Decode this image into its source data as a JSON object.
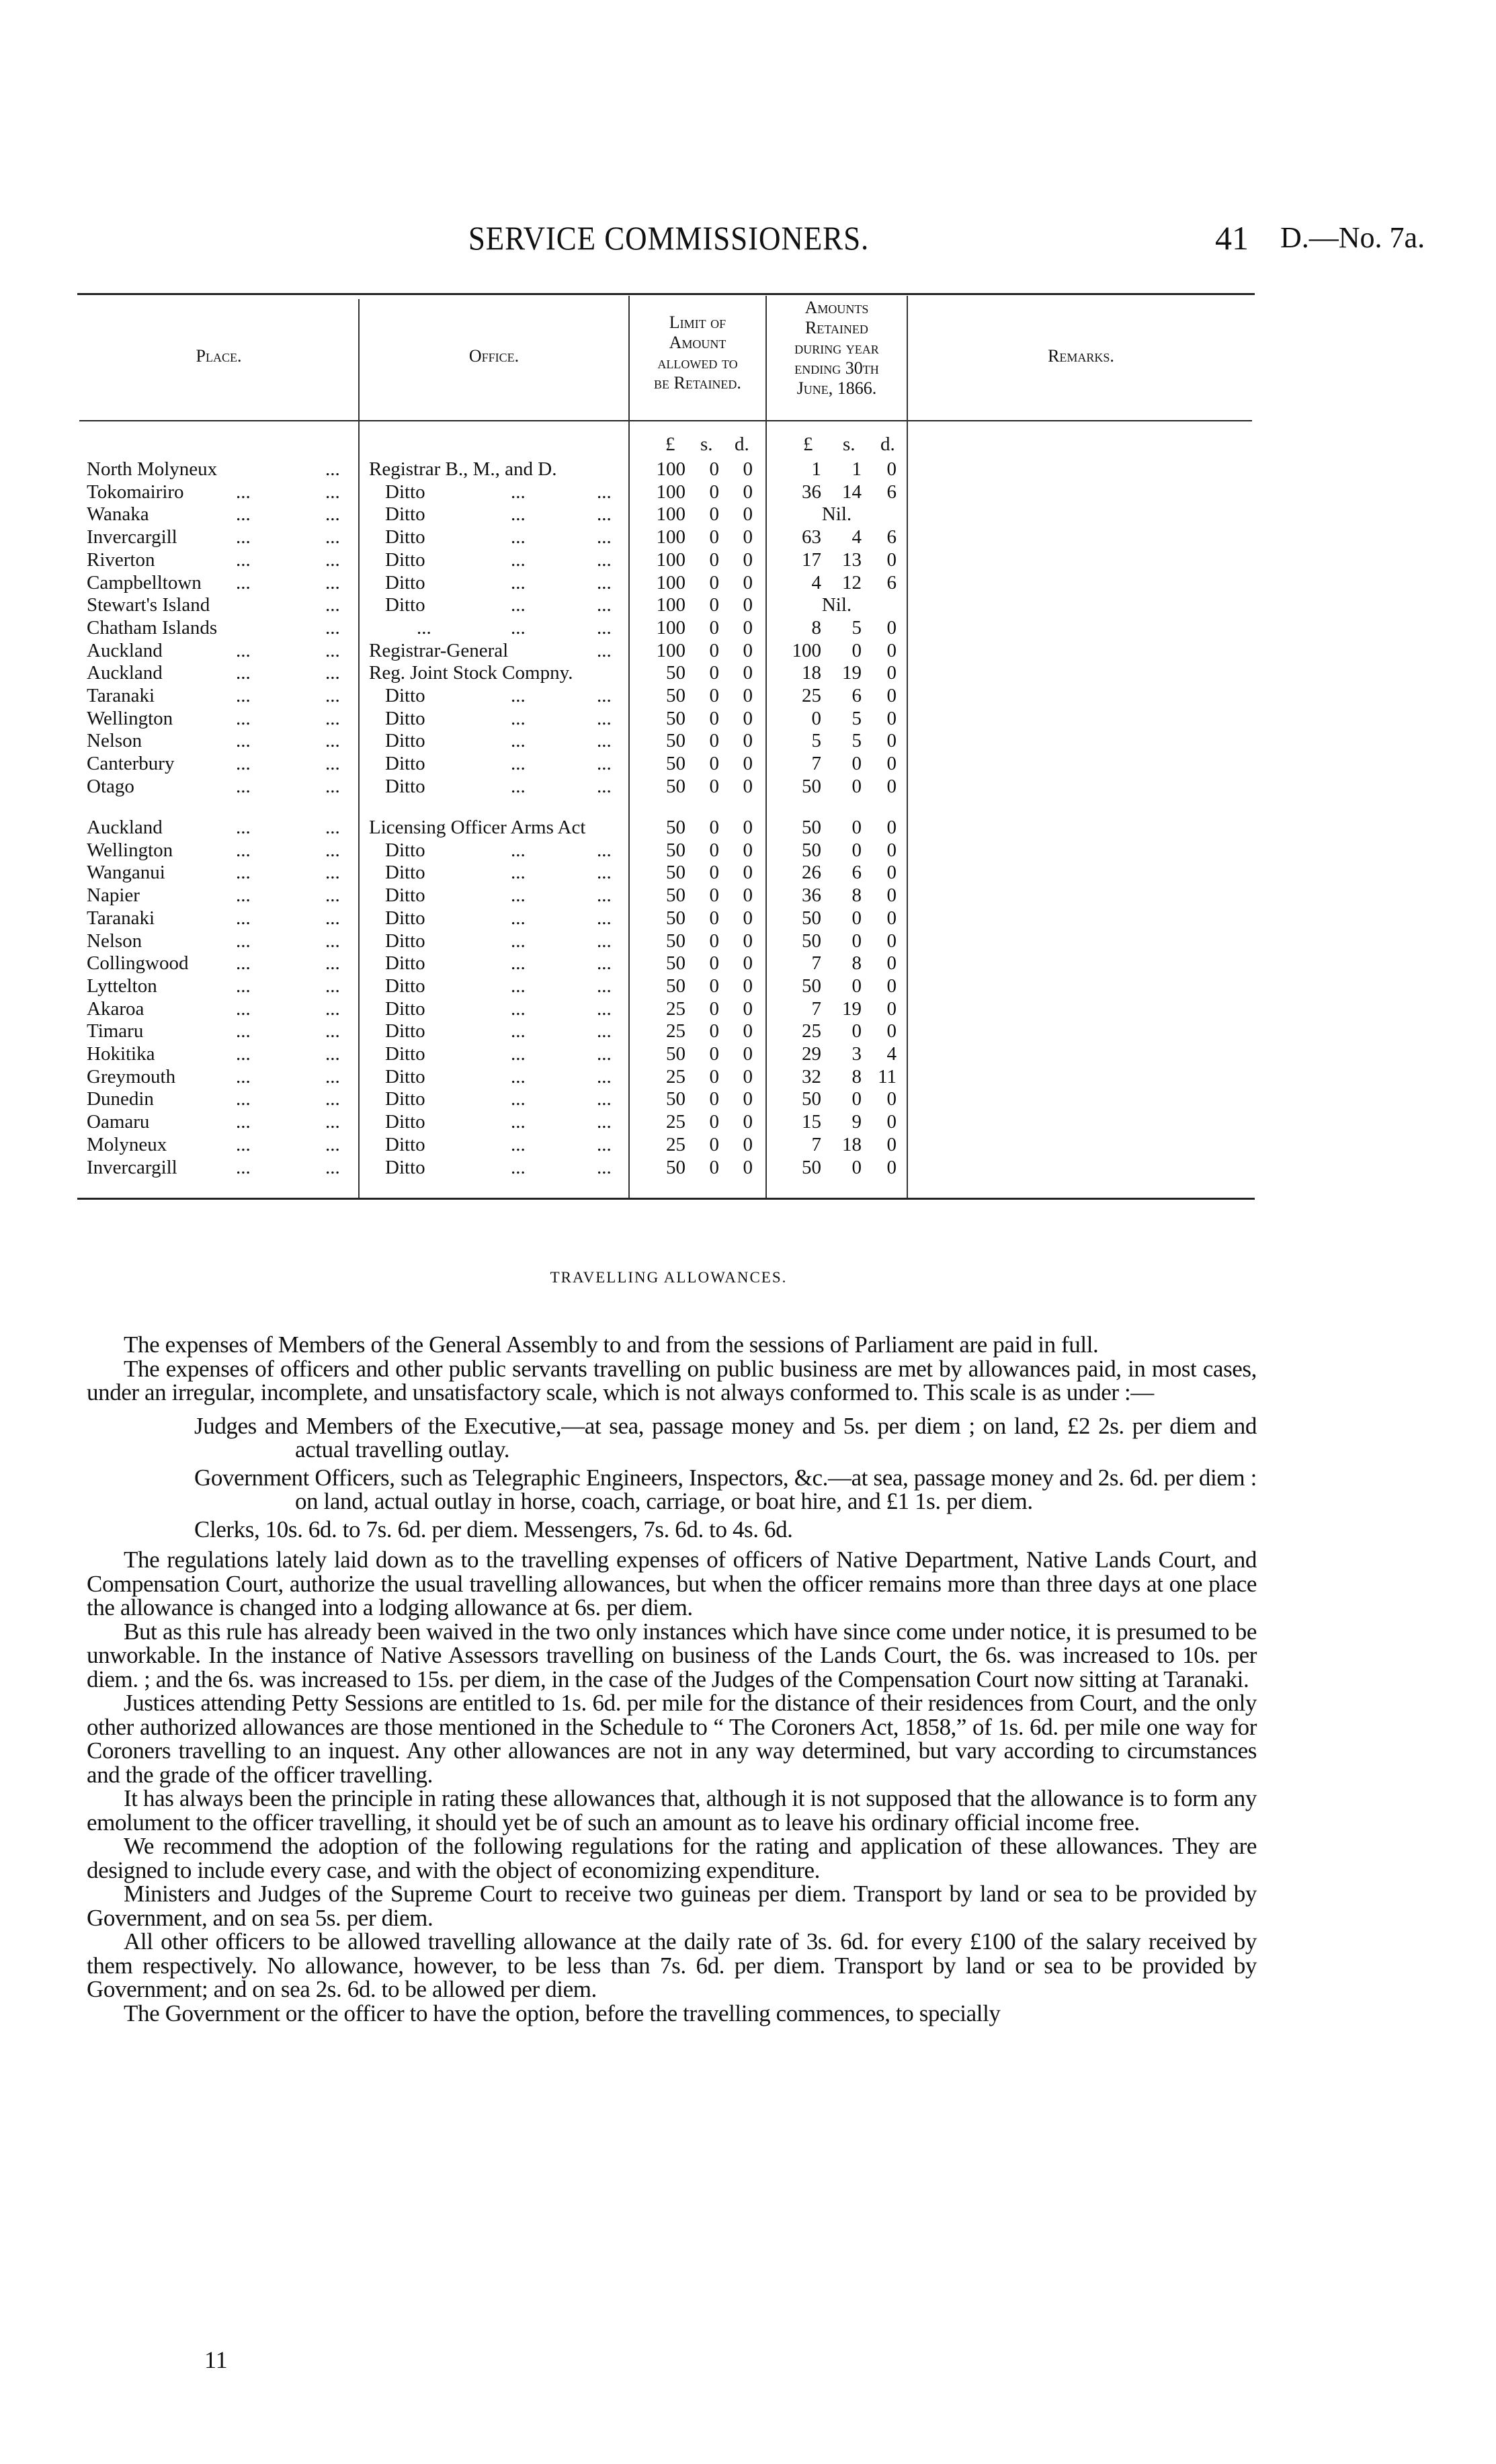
{
  "header": {
    "title": "SERVICE COMMISSIONERS.",
    "page_number": "41",
    "document_ref": "D.—No. 7a."
  },
  "table": {
    "headers": {
      "place": "Place.",
      "office": "Office.",
      "limit": [
        "Limit of",
        "Amount",
        "allowed to",
        "be Retained."
      ],
      "retained": [
        "Amounts",
        "Retained",
        "during year",
        "ending 30th",
        "June, 1866."
      ],
      "remarks": "Remarks."
    },
    "units": {
      "pounds": "£",
      "shillings": "s.",
      "pence": "d."
    },
    "leader": "...",
    "groups": [
      [
        {
          "place": "North Molyneux",
          "place_leaders": 1,
          "office": "Registrar B., M., and D.",
          "office_style": "full",
          "limit": [
            "100",
            "0",
            "0"
          ],
          "retained": [
            "1",
            "1",
            "0"
          ]
        },
        {
          "place": "Tokomairiro",
          "place_leaders": 2,
          "office": "Ditto",
          "office_style": "ditto",
          "limit": [
            "100",
            "0",
            "0"
          ],
          "retained": [
            "36",
            "14",
            "6"
          ]
        },
        {
          "place": "Wanaka",
          "place_leaders": 2,
          "office": "Ditto",
          "office_style": "ditto",
          "limit": [
            "100",
            "0",
            "0"
          ],
          "retained": "Nil."
        },
        {
          "place": "Invercargill",
          "place_leaders": 2,
          "office": "Ditto",
          "office_style": "ditto",
          "limit": [
            "100",
            "0",
            "0"
          ],
          "retained": [
            "63",
            "4",
            "6"
          ]
        },
        {
          "place": "Riverton",
          "place_leaders": 2,
          "office": "Ditto",
          "office_style": "ditto",
          "limit": [
            "100",
            "0",
            "0"
          ],
          "retained": [
            "17",
            "13",
            "0"
          ]
        },
        {
          "place": "Campbelltown",
          "place_leaders": 2,
          "office": "Ditto",
          "office_style": "ditto",
          "limit": [
            "100",
            "0",
            "0"
          ],
          "retained": [
            "4",
            "12",
            "6"
          ]
        },
        {
          "place": "Stewart's Island",
          "place_leaders": 1,
          "office": "Ditto",
          "office_style": "ditto",
          "limit": [
            "100",
            "0",
            "0"
          ],
          "retained": "Nil."
        },
        {
          "place": "Chatham Islands",
          "place_leaders": 1,
          "office": "",
          "office_style": "blank",
          "limit": [
            "100",
            "0",
            "0"
          ],
          "retained": [
            "8",
            "5",
            "0"
          ]
        },
        {
          "place": "Auckland",
          "place_leaders": 2,
          "office": "Registrar-General",
          "office_style": "full_leader",
          "limit": [
            "100",
            "0",
            "0"
          ],
          "retained": [
            "100",
            "0",
            "0"
          ]
        },
        {
          "place": "Auckland",
          "place_leaders": 2,
          "office": "Reg. Joint Stock Compny.",
          "office_style": "full",
          "limit": [
            "50",
            "0",
            "0"
          ],
          "retained": [
            "18",
            "19",
            "0"
          ]
        },
        {
          "place": "Taranaki",
          "place_leaders": 2,
          "office": "Ditto",
          "office_style": "ditto",
          "limit": [
            "50",
            "0",
            "0"
          ],
          "retained": [
            "25",
            "6",
            "0"
          ]
        },
        {
          "place": "Wellington",
          "place_leaders": 2,
          "office": "Ditto",
          "office_style": "ditto",
          "limit": [
            "50",
            "0",
            "0"
          ],
          "retained": [
            "0",
            "5",
            "0"
          ]
        },
        {
          "place": "Nelson",
          "place_leaders": 2,
          "office": "Ditto",
          "office_style": "ditto",
          "limit": [
            "50",
            "0",
            "0"
          ],
          "retained": [
            "5",
            "5",
            "0"
          ]
        },
        {
          "place": "Canterbury",
          "place_leaders": 2,
          "office": "Ditto",
          "office_style": "ditto",
          "limit": [
            "50",
            "0",
            "0"
          ],
          "retained": [
            "7",
            "0",
            "0"
          ]
        },
        {
          "place": "Otago",
          "place_leaders": 2,
          "office": "Ditto",
          "office_style": "ditto",
          "limit": [
            "50",
            "0",
            "0"
          ],
          "retained": [
            "50",
            "0",
            "0"
          ]
        }
      ],
      [
        {
          "place": "Auckland",
          "place_leaders": 2,
          "office": "Licensing Officer Arms Act",
          "office_style": "full",
          "limit": [
            "50",
            "0",
            "0"
          ],
          "retained": [
            "50",
            "0",
            "0"
          ]
        },
        {
          "place": "Wellington",
          "place_leaders": 2,
          "office": "Ditto",
          "office_style": "ditto",
          "limit": [
            "50",
            "0",
            "0"
          ],
          "retained": [
            "50",
            "0",
            "0"
          ]
        },
        {
          "place": "Wanganui",
          "place_leaders": 2,
          "office": "Ditto",
          "office_style": "ditto",
          "limit": [
            "50",
            "0",
            "0"
          ],
          "retained": [
            "26",
            "6",
            "0"
          ]
        },
        {
          "place": "Napier",
          "place_leaders": 2,
          "office": "Ditto",
          "office_style": "ditto",
          "limit": [
            "50",
            "0",
            "0"
          ],
          "retained": [
            "36",
            "8",
            "0"
          ]
        },
        {
          "place": "Taranaki",
          "place_leaders": 2,
          "office": "Ditto",
          "office_style": "ditto",
          "limit": [
            "50",
            "0",
            "0"
          ],
          "retained": [
            "50",
            "0",
            "0"
          ]
        },
        {
          "place": "Nelson",
          "place_leaders": 2,
          "office": "Ditto",
          "office_style": "ditto",
          "limit": [
            "50",
            "0",
            "0"
          ],
          "retained": [
            "50",
            "0",
            "0"
          ]
        },
        {
          "place": "Collingwood",
          "place_leaders": 2,
          "office": "Ditto",
          "office_style": "ditto",
          "limit": [
            "50",
            "0",
            "0"
          ],
          "retained": [
            "7",
            "8",
            "0"
          ]
        },
        {
          "place": "Lyttelton",
          "place_leaders": 2,
          "office": "Ditto",
          "office_style": "ditto",
          "limit": [
            "50",
            "0",
            "0"
          ],
          "retained": [
            "50",
            "0",
            "0"
          ]
        },
        {
          "place": "Akaroa",
          "place_leaders": 2,
          "office": "Ditto",
          "office_style": "ditto",
          "limit": [
            "25",
            "0",
            "0"
          ],
          "retained": [
            "7",
            "19",
            "0"
          ]
        },
        {
          "place": "Timaru",
          "place_leaders": 2,
          "office": "Ditto",
          "office_style": "ditto",
          "limit": [
            "25",
            "0",
            "0"
          ],
          "retained": [
            "25",
            "0",
            "0"
          ]
        },
        {
          "place": "Hokitika",
          "place_leaders": 2,
          "office": "Ditto",
          "office_style": "ditto",
          "limit": [
            "50",
            "0",
            "0"
          ],
          "retained": [
            "29",
            "3",
            "4"
          ]
        },
        {
          "place": "Greymouth",
          "place_leaders": 2,
          "office": "Ditto",
          "office_style": "ditto",
          "limit": [
            "25",
            "0",
            "0"
          ],
          "retained": [
            "32",
            "8",
            "11"
          ]
        },
        {
          "place": "Dunedin",
          "place_leaders": 2,
          "office": "Ditto",
          "office_style": "ditto",
          "limit": [
            "50",
            "0",
            "0"
          ],
          "retained": [
            "50",
            "0",
            "0"
          ]
        },
        {
          "place": "Oamaru",
          "place_leaders": 2,
          "office": "Ditto",
          "office_style": "ditto",
          "limit": [
            "25",
            "0",
            "0"
          ],
          "retained": [
            "15",
            "9",
            "0"
          ]
        },
        {
          "place": "Molyneux",
          "place_leaders": 2,
          "office": "Ditto",
          "office_style": "ditto",
          "limit": [
            "25",
            "0",
            "0"
          ],
          "retained": [
            "7",
            "18",
            "0"
          ]
        },
        {
          "place": "Invercargill",
          "place_leaders": 2,
          "office": "Ditto",
          "office_style": "ditto",
          "limit": [
            "50",
            "0",
            "0"
          ],
          "retained": [
            "50",
            "0",
            "0"
          ]
        }
      ]
    ]
  },
  "section": {
    "title": "TRAVELLING ALLOWANCES.",
    "paragraphs": [
      "The expenses of Members of the General Assembly to and from the sessions of Parliament are paid in full.",
      "The expenses of officers and other public servants travelling on public business are met by allowances paid, in most cases, under an irregular, incomplete, and unsatisfactory scale, which is not always conformed to. This scale is as under :—"
    ],
    "scale": [
      "Judges and Members of the Executive,—at sea, passage money and 5s. per diem ; on land, £2 2s. per diem and actual travelling outlay.",
      "Government Officers, such as Telegraphic Engineers, Inspectors, &c.—at sea, passage money and 2s. 6d. per diem : on land, actual outlay in horse, coach, carriage, or boat hire, and £1 1s. per diem.",
      "Clerks, 10s. 6d. to 7s. 6d. per diem. Messengers, 7s. 6d. to 4s. 6d."
    ],
    "paragraphs_after": [
      "The regulations lately laid down as to the travelling expenses of officers of Native Department, Native Lands Court, and Compensation Court, authorize the usual travelling allowances, but when the officer remains more than three days at one place the allowance is changed into a lodging allowance at 6s. per diem.",
      "But as this rule has already been waived in the two only instances which have since come under notice, it is presumed to be unworkable. In the instance of Native Assessors travelling on business of the Lands Court, the 6s. was increased to 10s. per diem. ; and the 6s. was increased to 15s. per diem, in the case of the Judges of the Compensation Court now sitting at Taranaki.",
      "Justices attending Petty Sessions are entitled to 1s. 6d. per mile for the distance of their residences from Court, and the only other authorized allowances are those mentioned in the Schedule to “ The Coroners Act, 1858,” of 1s. 6d. per mile one way for Coroners travelling to an inquest. Any other allowances are not in any way determined, but vary according to circumstances and the grade of the officer travelling.",
      "It has always been the principle in rating these allowances that, although it is not supposed that the allowance is to form any emolument to the officer travelling, it should yet be of such an amount as to leave his ordinary official income free.",
      "We recommend the adoption of the following regulations for the rating and application of these allowances. They are designed to include every case, and with the object of economizing expenditure.",
      "Ministers and Judges of the Supreme Court to receive two guineas per diem. Transport by land or sea to be provided by Government, and on sea 5s. per diem.",
      "All other officers to be allowed travelling allowance at the daily rate of 3s. 6d. for every £100 of the salary received by them respectively. No allowance, however, to be less than 7s. 6d. per diem. Transport by land or sea to be provided by Government; and on sea 2s. 6d. to be allowed per diem.",
      "The Government or the officer to have the option, before the travelling commences, to specially"
    ]
  },
  "footer": {
    "signature_mark": "11"
  }
}
